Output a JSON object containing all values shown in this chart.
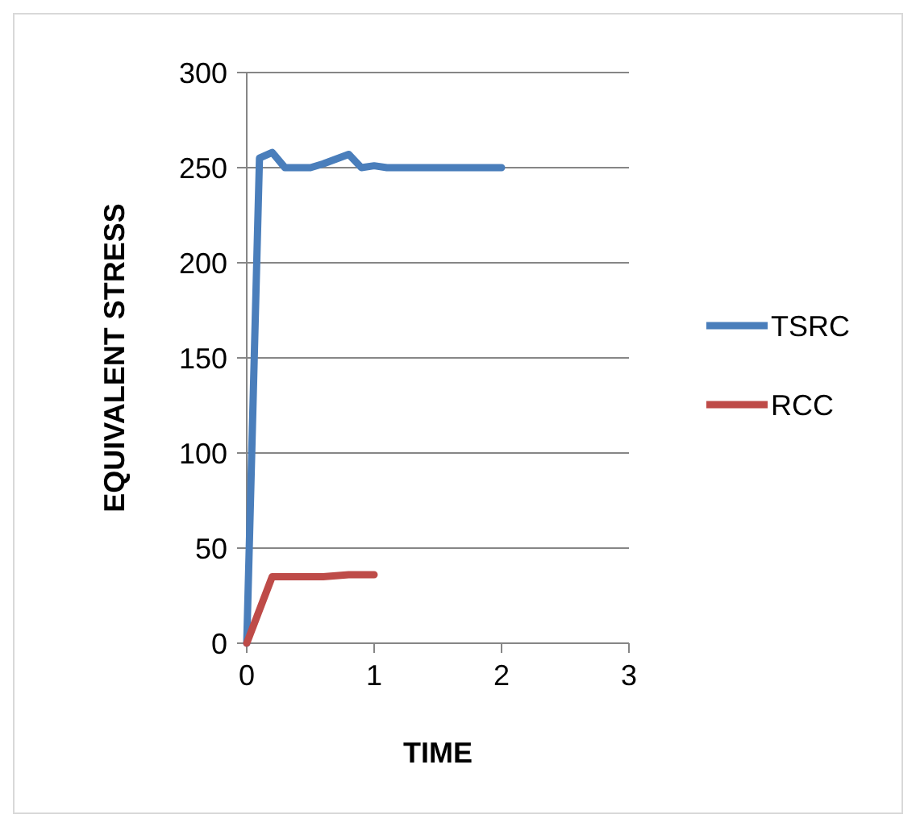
{
  "chart_data": {
    "type": "line",
    "xlabel": "TIME",
    "ylabel": "EQUIVALENT STRESS",
    "xlim": [
      0,
      3
    ],
    "xticks": [
      0,
      1,
      2,
      3
    ],
    "ylim": [
      0,
      300
    ],
    "yticks": [
      0,
      50,
      100,
      150,
      200,
      250,
      300
    ],
    "grid": "y",
    "legend": "right",
    "marker": "none",
    "line_style": "solid",
    "series": [
      {
        "name": "TSRC",
        "color": "#4a7ebb",
        "x": [
          0,
          0.1,
          0.2,
          0.3,
          0.5,
          0.6,
          0.8,
          0.9,
          1,
          1.1,
          2
        ],
        "values": [
          0,
          255,
          258,
          250,
          250,
          252,
          257,
          250,
          251,
          250,
          250
        ]
      },
      {
        "name": "RCC",
        "color": "#be4b48",
        "x": [
          0,
          0.2,
          0.4,
          0.6,
          0.8,
          1
        ],
        "values": [
          0,
          35,
          35,
          35,
          36,
          36
        ]
      }
    ]
  }
}
